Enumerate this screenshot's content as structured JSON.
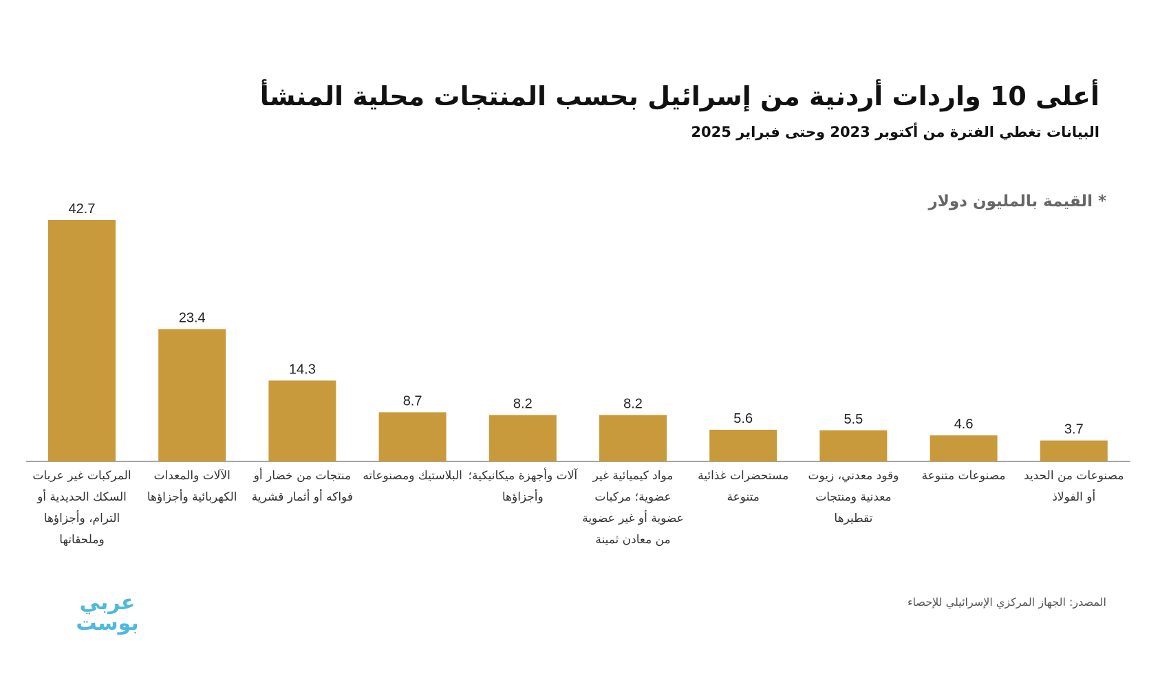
{
  "chart_data": {
    "type": "bar",
    "title": "أعلى 10 واردات أردنية من إسرائيل بحسب المنتجات محلية المنشأ",
    "subtitle": "البيانات تغطي الفترة من أكتوبر 2023 وحتى فبراير 2025",
    "unit_note": "* القيمة بالمليون دولار",
    "source": "المصدر: الجهاز المركزي الإسرائيلي للإحصاء",
    "logo": "عربي بوست",
    "color": "#c99a3b",
    "categories": [
      "المركبات غير عربات السكك الحديدية أو الترام، وأجزاؤها وملحقاتها",
      "الآلات والمعدات الكهربائية وأجزاؤها",
      "منتجات من خضار أو فواكه أو أثمار قشرية",
      "البلاستيك ومصنوعاته",
      "آلات وأجهزة ميكانيكية؛ وأجزاؤها",
      "مواد كيميائية غير عضوية؛ مركبات عضوية أو غير عضوية من معادن ثمينة",
      "مستحضرات غذائية متنوعة",
      "وقود معدني، زيوت معدنية ومنتجات تقطيرها",
      "مصنوعات متنوعة",
      "مصنوعات من الحديد أو الفولاذ"
    ],
    "values": [
      42.7,
      23.4,
      14.3,
      8.7,
      8.2,
      8.2,
      5.6,
      5.5,
      4.6,
      3.7
    ]
  }
}
